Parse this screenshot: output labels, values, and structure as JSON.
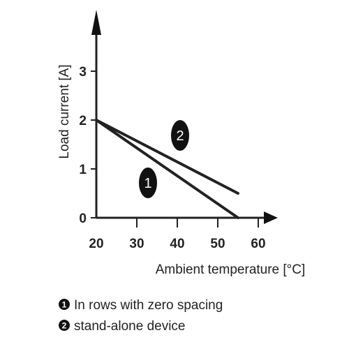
{
  "chart_data": {
    "type": "line",
    "xlabel": "Ambient temperature [°C]",
    "ylabel": "Load current [A]",
    "xlim": [
      20,
      60
    ],
    "ylim": [
      0,
      3
    ],
    "x_ticks": [
      "20",
      "30",
      "40",
      "50",
      "60"
    ],
    "y_ticks": [
      "0",
      "1",
      "2",
      "3"
    ],
    "grid": false,
    "series": [
      {
        "marker": "1",
        "x": [
          20,
          55
        ],
        "y": [
          2,
          0
        ]
      },
      {
        "marker": "2",
        "x": [
          20,
          55
        ],
        "y": [
          2,
          0.5
        ]
      }
    ],
    "legend": [
      {
        "marker": "1",
        "text": "In rows with zero spacing"
      },
      {
        "marker": "2",
        "text": "stand-alone device"
      }
    ],
    "colors": {
      "line": "#222222",
      "marker_bg": "#111111"
    }
  }
}
